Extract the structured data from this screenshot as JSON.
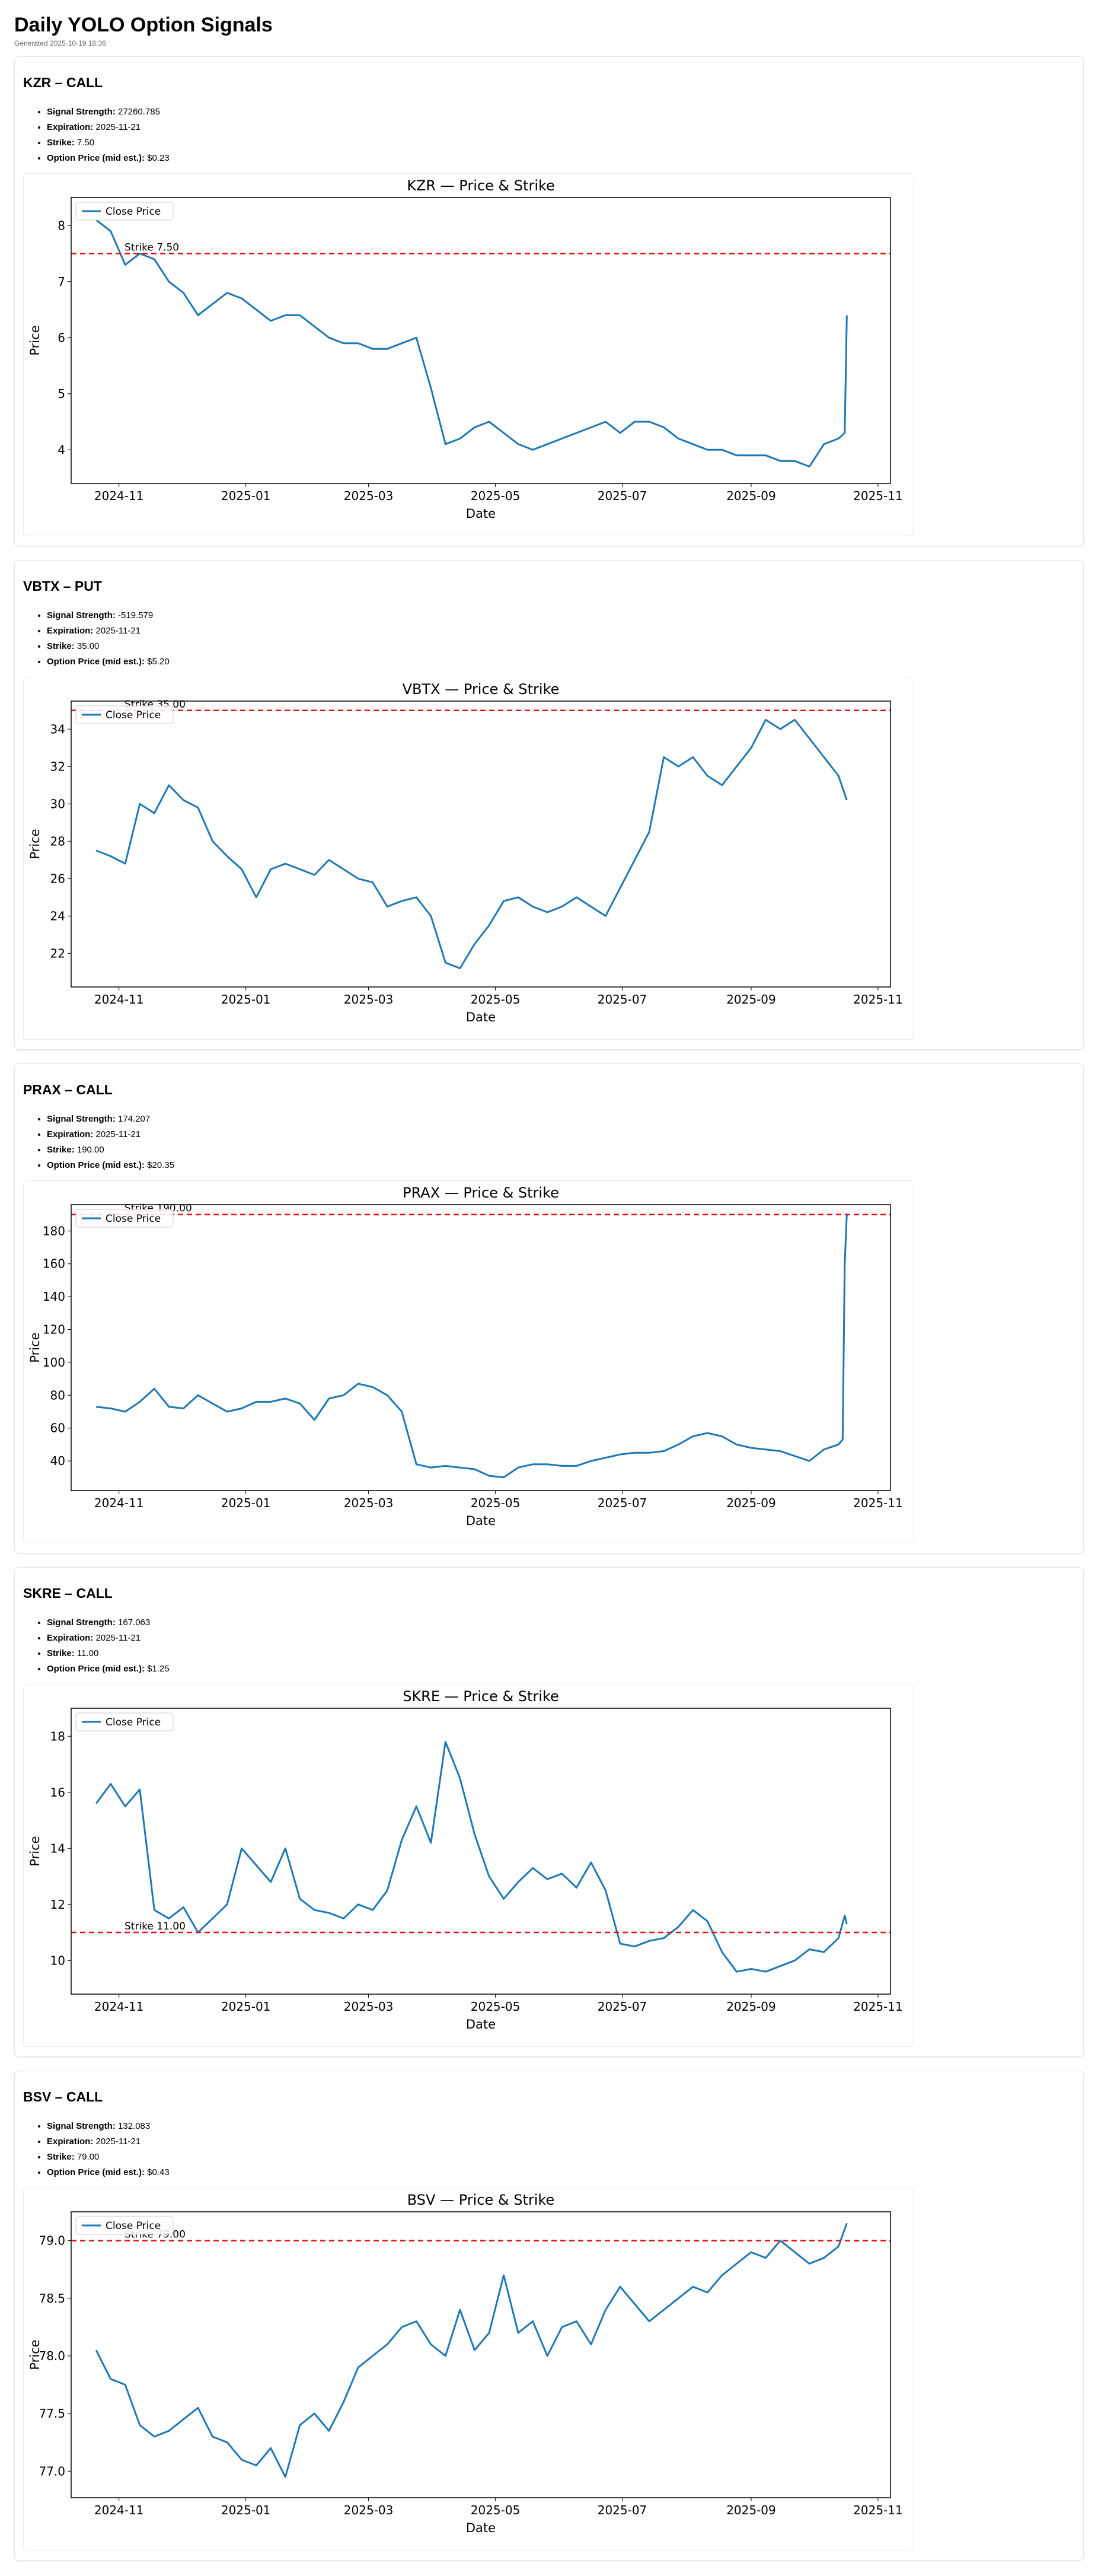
{
  "header": {
    "title": "Daily YOLO Option Signals",
    "generated": "Generated 2025-10-19 18:36"
  },
  "labels": {
    "signal_strength": "Signal Strength:",
    "expiration": "Expiration:",
    "strike": "Strike:",
    "option_price": "Option Price (mid est.):"
  },
  "signals": [
    {
      "heading": "KZR – CALL",
      "signal_strength": "27260.785",
      "expiration": "2025-11-21",
      "strike": "7.50",
      "option_price": "$0.23"
    },
    {
      "heading": "VBTX – PUT",
      "signal_strength": "-519.579",
      "expiration": "2025-11-21",
      "strike": "35.00",
      "option_price": "$5.20"
    },
    {
      "heading": "PRAX – CALL",
      "signal_strength": "174.207",
      "expiration": "2025-11-21",
      "strike": "190.00",
      "option_price": "$20.35"
    },
    {
      "heading": "SKRE – CALL",
      "signal_strength": "167.063",
      "expiration": "2025-11-21",
      "strike": "11.00",
      "option_price": "$1.25"
    },
    {
      "heading": "BSV – CALL",
      "signal_strength": "132.083",
      "expiration": "2025-11-21",
      "strike": "79.00",
      "option_price": "$0.43"
    }
  ],
  "chart_data": [
    {
      "type": "line",
      "title": "KZR — Price & Strike",
      "xlabel": "Date",
      "ylabel": "Price",
      "legend": "Close Price",
      "legend_position": "top-left",
      "strike": 7.5,
      "strike_label": "Strike 7.50",
      "xticks": [
        "2024-11",
        "2025-01",
        "2025-03",
        "2025-05",
        "2025-07",
        "2025-09",
        "2025-11"
      ],
      "yticks": [
        4,
        5,
        6,
        7,
        8
      ],
      "ylim": [
        3.4,
        8.5
      ],
      "x": [
        "2024-10-21",
        "2024-10-28",
        "2024-11-04",
        "2024-11-11",
        "2024-11-18",
        "2024-11-25",
        "2024-12-02",
        "2024-12-09",
        "2024-12-16",
        "2024-12-23",
        "2024-12-30",
        "2025-01-06",
        "2025-01-13",
        "2025-01-20",
        "2025-01-27",
        "2025-02-03",
        "2025-02-10",
        "2025-02-17",
        "2025-02-24",
        "2025-03-03",
        "2025-03-10",
        "2025-03-17",
        "2025-03-24",
        "2025-03-31",
        "2025-04-07",
        "2025-04-14",
        "2025-04-21",
        "2025-04-28",
        "2025-05-05",
        "2025-05-12",
        "2025-05-19",
        "2025-05-26",
        "2025-06-02",
        "2025-06-09",
        "2025-06-16",
        "2025-06-23",
        "2025-06-30",
        "2025-07-07",
        "2025-07-14",
        "2025-07-21",
        "2025-07-28",
        "2025-08-04",
        "2025-08-11",
        "2025-08-18",
        "2025-08-25",
        "2025-09-01",
        "2025-09-08",
        "2025-09-15",
        "2025-09-22",
        "2025-09-29",
        "2025-10-06",
        "2025-10-13",
        "2025-10-16",
        "2025-10-17"
      ],
      "values": [
        8.1,
        7.9,
        7.3,
        7.5,
        7.4,
        7.0,
        6.8,
        6.4,
        6.6,
        6.8,
        6.7,
        6.5,
        6.3,
        6.4,
        6.4,
        6.2,
        6.0,
        5.9,
        5.9,
        5.8,
        5.8,
        5.9,
        6.0,
        5.1,
        4.1,
        4.2,
        4.4,
        4.5,
        4.3,
        4.1,
        4.0,
        4.1,
        4.2,
        4.3,
        4.4,
        4.5,
        4.3,
        4.5,
        4.5,
        4.4,
        4.2,
        4.1,
        4.0,
        4.0,
        3.9,
        3.9,
        3.9,
        3.8,
        3.8,
        3.7,
        4.1,
        4.2,
        4.3,
        6.4
      ]
    },
    {
      "type": "line",
      "title": "VBTX — Price & Strike",
      "xlabel": "Date",
      "ylabel": "Price",
      "legend": "Close Price",
      "legend_position": "top-left",
      "strike": 35,
      "strike_label": "Strike 35.00",
      "xticks": [
        "2024-11",
        "2025-01",
        "2025-03",
        "2025-05",
        "2025-07",
        "2025-09",
        "2025-11"
      ],
      "yticks": [
        22,
        24,
        26,
        28,
        30,
        32,
        34
      ],
      "ylim": [
        20.2,
        35.5
      ],
      "x": [
        "2024-10-21",
        "2024-10-28",
        "2024-11-04",
        "2024-11-11",
        "2024-11-18",
        "2024-11-25",
        "2024-12-02",
        "2024-12-09",
        "2024-12-16",
        "2024-12-23",
        "2024-12-30",
        "2025-01-06",
        "2025-01-13",
        "2025-01-20",
        "2025-01-27",
        "2025-02-03",
        "2025-02-10",
        "2025-02-17",
        "2025-02-24",
        "2025-03-03",
        "2025-03-10",
        "2025-03-17",
        "2025-03-24",
        "2025-03-31",
        "2025-04-07",
        "2025-04-14",
        "2025-04-21",
        "2025-04-28",
        "2025-05-05",
        "2025-05-12",
        "2025-05-19",
        "2025-05-26",
        "2025-06-02",
        "2025-06-09",
        "2025-06-16",
        "2025-06-23",
        "2025-06-30",
        "2025-07-07",
        "2025-07-14",
        "2025-07-21",
        "2025-07-28",
        "2025-08-04",
        "2025-08-11",
        "2025-08-18",
        "2025-08-25",
        "2025-09-01",
        "2025-09-08",
        "2025-09-15",
        "2025-09-22",
        "2025-09-29",
        "2025-10-06",
        "2025-10-13",
        "2025-10-17"
      ],
      "values": [
        27.5,
        27.2,
        26.8,
        30.0,
        29.5,
        31.0,
        30.2,
        29.8,
        28.0,
        27.2,
        26.5,
        25.0,
        26.5,
        26.8,
        26.5,
        26.2,
        27.0,
        26.5,
        26.0,
        25.8,
        24.5,
        24.8,
        25.0,
        24.0,
        21.5,
        21.2,
        22.5,
        23.5,
        24.8,
        25.0,
        24.5,
        24.2,
        24.5,
        25.0,
        24.5,
        24.0,
        25.5,
        27.0,
        28.5,
        32.5,
        32.0,
        32.5,
        31.5,
        31.0,
        32.0,
        33.0,
        34.5,
        34.0,
        34.5,
        33.5,
        32.5,
        31.5,
        30.2
      ]
    },
    {
      "type": "line",
      "title": "PRAX — Price & Strike",
      "xlabel": "Date",
      "ylabel": "Price",
      "legend": "Close Price",
      "legend_position": "top-left",
      "strike": 190,
      "strike_label": "Strike 190.00",
      "xticks": [
        "2024-11",
        "2025-01",
        "2025-03",
        "2025-05",
        "2025-07",
        "2025-09",
        "2025-11"
      ],
      "yticks": [
        40,
        60,
        80,
        100,
        120,
        140,
        160,
        180
      ],
      "ylim": [
        22,
        196
      ],
      "x": [
        "2024-10-21",
        "2024-10-28",
        "2024-11-04",
        "2024-11-11",
        "2024-11-18",
        "2024-11-25",
        "2024-12-02",
        "2024-12-09",
        "2024-12-16",
        "2024-12-23",
        "2024-12-30",
        "2025-01-06",
        "2025-01-13",
        "2025-01-20",
        "2025-01-27",
        "2025-02-03",
        "2025-02-10",
        "2025-02-17",
        "2025-02-24",
        "2025-03-03",
        "2025-03-10",
        "2025-03-17",
        "2025-03-24",
        "2025-03-31",
        "2025-04-07",
        "2025-04-14",
        "2025-04-21",
        "2025-04-28",
        "2025-05-05",
        "2025-05-12",
        "2025-05-19",
        "2025-05-26",
        "2025-06-02",
        "2025-06-09",
        "2025-06-16",
        "2025-06-23",
        "2025-06-30",
        "2025-07-07",
        "2025-07-14",
        "2025-07-21",
        "2025-07-28",
        "2025-08-04",
        "2025-08-11",
        "2025-08-18",
        "2025-08-25",
        "2025-09-01",
        "2025-09-08",
        "2025-09-15",
        "2025-09-22",
        "2025-09-29",
        "2025-10-06",
        "2025-10-13",
        "2025-10-15",
        "2025-10-16",
        "2025-10-17"
      ],
      "values": [
        73,
        72,
        70,
        76,
        84,
        73,
        72,
        80,
        75,
        70,
        72,
        76,
        76,
        78,
        75,
        65,
        78,
        80,
        87,
        85,
        80,
        70,
        38,
        36,
        37,
        36,
        35,
        31,
        30,
        36,
        38,
        38,
        37,
        37,
        40,
        42,
        44,
        45,
        45,
        46,
        50,
        55,
        57,
        55,
        50,
        48,
        47,
        46,
        43,
        40,
        47,
        50,
        53,
        160,
        190
      ]
    },
    {
      "type": "line",
      "title": "SKRE — Price & Strike",
      "xlabel": "Date",
      "ylabel": "Price",
      "legend": "Close Price",
      "legend_position": "top-left",
      "strike": 11,
      "strike_label": "Strike 11.00",
      "xticks": [
        "2024-11",
        "2025-01",
        "2025-03",
        "2025-05",
        "2025-07",
        "2025-09",
        "2025-11"
      ],
      "yticks": [
        10,
        12,
        14,
        16,
        18
      ],
      "ylim": [
        8.8,
        19.0
      ],
      "x": [
        "2024-10-21",
        "2024-10-28",
        "2024-11-04",
        "2024-11-11",
        "2024-11-18",
        "2024-11-25",
        "2024-12-02",
        "2024-12-09",
        "2024-12-16",
        "2024-12-23",
        "2024-12-30",
        "2025-01-06",
        "2025-01-13",
        "2025-01-20",
        "2025-01-27",
        "2025-02-03",
        "2025-02-10",
        "2025-02-17",
        "2025-02-24",
        "2025-03-03",
        "2025-03-10",
        "2025-03-17",
        "2025-03-24",
        "2025-03-31",
        "2025-04-07",
        "2025-04-14",
        "2025-04-21",
        "2025-04-28",
        "2025-05-05",
        "2025-05-12",
        "2025-05-19",
        "2025-05-26",
        "2025-06-02",
        "2025-06-09",
        "2025-06-16",
        "2025-06-23",
        "2025-06-30",
        "2025-07-07",
        "2025-07-14",
        "2025-07-21",
        "2025-07-28",
        "2025-08-04",
        "2025-08-11",
        "2025-08-18",
        "2025-08-25",
        "2025-09-01",
        "2025-09-08",
        "2025-09-15",
        "2025-09-22",
        "2025-09-29",
        "2025-10-06",
        "2025-10-13",
        "2025-10-16",
        "2025-10-17"
      ],
      "values": [
        15.6,
        16.3,
        15.5,
        16.1,
        11.8,
        11.5,
        11.9,
        11.0,
        11.5,
        12.0,
        14.0,
        13.4,
        12.8,
        14.0,
        12.2,
        11.8,
        11.7,
        11.5,
        12.0,
        11.8,
        12.5,
        14.3,
        15.5,
        14.2,
        17.8,
        16.5,
        14.5,
        13.0,
        12.2,
        12.8,
        13.3,
        12.9,
        13.1,
        12.6,
        13.5,
        12.5,
        10.6,
        10.5,
        10.7,
        10.8,
        11.2,
        11.8,
        11.4,
        10.3,
        9.6,
        9.7,
        9.6,
        9.8,
        10.0,
        10.4,
        10.3,
        10.8,
        11.6,
        11.3
      ]
    },
    {
      "type": "line",
      "title": "BSV — Price & Strike",
      "xlabel": "Date",
      "ylabel": "Price",
      "legend": "Close Price",
      "legend_position": "top-left",
      "strike": 79,
      "strike_label": "Strike 79.00",
      "xticks": [
        "2024-11",
        "2025-01",
        "2025-03",
        "2025-05",
        "2025-07",
        "2025-09",
        "2025-11"
      ],
      "yticks": [
        "77.0",
        "77.5",
        "78.0",
        "78.5",
        "79.0"
      ],
      "ylim": [
        76.77,
        79.25
      ],
      "x": [
        "2024-10-21",
        "2024-10-28",
        "2024-11-04",
        "2024-11-11",
        "2024-11-18",
        "2024-11-25",
        "2024-12-02",
        "2024-12-09",
        "2024-12-16",
        "2024-12-23",
        "2024-12-30",
        "2025-01-06",
        "2025-01-13",
        "2025-01-20",
        "2025-01-27",
        "2025-02-03",
        "2025-02-10",
        "2025-02-17",
        "2025-02-24",
        "2025-03-03",
        "2025-03-10",
        "2025-03-17",
        "2025-03-24",
        "2025-03-31",
        "2025-04-07",
        "2025-04-14",
        "2025-04-21",
        "2025-04-28",
        "2025-05-05",
        "2025-05-12",
        "2025-05-19",
        "2025-05-26",
        "2025-06-02",
        "2025-06-09",
        "2025-06-16",
        "2025-06-23",
        "2025-06-30",
        "2025-07-07",
        "2025-07-14",
        "2025-07-21",
        "2025-07-28",
        "2025-08-04",
        "2025-08-11",
        "2025-08-18",
        "2025-08-25",
        "2025-09-01",
        "2025-09-08",
        "2025-09-15",
        "2025-09-22",
        "2025-09-29",
        "2025-10-06",
        "2025-10-13",
        "2025-10-17"
      ],
      "values": [
        78.05,
        77.8,
        77.75,
        77.4,
        77.3,
        77.35,
        77.45,
        77.55,
        77.3,
        77.25,
        77.1,
        77.05,
        77.2,
        76.95,
        77.4,
        77.5,
        77.35,
        77.6,
        77.9,
        78.0,
        78.1,
        78.25,
        78.3,
        78.1,
        78.0,
        78.4,
        78.05,
        78.2,
        78.7,
        78.2,
        78.3,
        78.0,
        78.25,
        78.3,
        78.1,
        78.4,
        78.6,
        78.45,
        78.3,
        78.4,
        78.5,
        78.6,
        78.55,
        78.7,
        78.8,
        78.9,
        78.85,
        79.0,
        78.9,
        78.8,
        78.85,
        78.95,
        79.15
      ]
    }
  ]
}
